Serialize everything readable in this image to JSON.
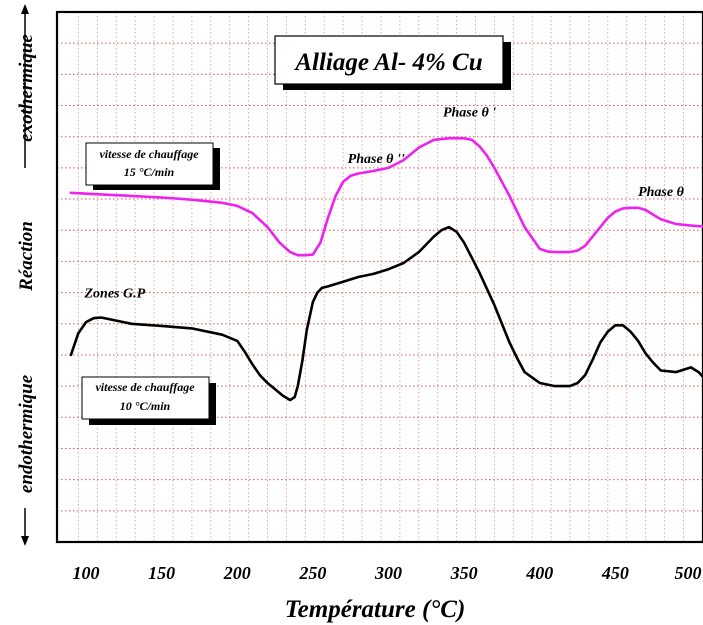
{
  "chart_data": {
    "type": "line",
    "title": "Alliage Al- 4% Cu",
    "xlabel": "Température (°C)",
    "ylabel": "Réaction",
    "ylabel_top": "exothermique",
    "ylabel_bottom": "endothermique",
    "xlim": [
      90,
      510
    ],
    "ylim": [
      0,
      17
    ],
    "x_ticks": [
      100,
      150,
      200,
      250,
      300,
      350,
      400,
      450,
      500
    ],
    "x_tick_labels": [
      "100",
      "150",
      "200",
      "250",
      "300",
      "350",
      "400",
      "450",
      "500"
    ],
    "grid": true,
    "series": [
      {
        "name": "vitesse de chauffage 15 °C/min",
        "name_line1": "vitesse de chauffage",
        "name_line2": "15 °C/min",
        "color": "#ee22ee",
        "x": [
          90,
          110,
          130,
          150,
          170,
          190,
          200,
          210,
          220,
          228,
          235,
          240,
          245,
          250,
          255,
          260,
          265,
          270,
          275,
          280,
          290,
          300,
          310,
          320,
          330,
          340,
          350,
          355,
          360,
          365,
          370,
          380,
          390,
          400,
          405,
          410,
          420,
          425,
          430,
          440,
          445,
          450,
          455,
          460,
          465,
          470,
          480,
          490,
          500,
          510
        ],
        "y": [
          11.2,
          11.15,
          11.1,
          11.05,
          10.98,
          10.88,
          10.78,
          10.55,
          10.1,
          9.6,
          9.3,
          9.2,
          9.2,
          9.22,
          9.6,
          10.4,
          11.1,
          11.55,
          11.75,
          11.82,
          11.9,
          12.0,
          12.25,
          12.65,
          12.9,
          12.95,
          12.95,
          12.9,
          12.7,
          12.4,
          12.0,
          11.1,
          10.1,
          9.4,
          9.32,
          9.3,
          9.3,
          9.35,
          9.5,
          10.1,
          10.4,
          10.6,
          10.7,
          10.72,
          10.72,
          10.65,
          10.35,
          10.2,
          10.15,
          10.12
        ]
      },
      {
        "name": "vitesse de chauffage 10 °C/min",
        "name_line1": "vitesse de chauffage",
        "name_line2": "10 °C/min",
        "color": "#000000",
        "x": [
          90,
          95,
          100,
          105,
          110,
          120,
          130,
          150,
          170,
          190,
          200,
          205,
          210,
          215,
          220,
          225,
          230,
          235,
          238,
          240,
          243,
          246,
          250,
          253,
          256,
          260,
          270,
          280,
          290,
          300,
          310,
          320,
          330,
          335,
          340,
          345,
          350,
          360,
          370,
          380,
          385,
          390,
          400,
          410,
          420,
          425,
          430,
          435,
          440,
          445,
          450,
          455,
          460,
          465,
          470,
          475,
          480,
          490,
          500,
          505,
          510
        ],
        "y": [
          6.0,
          6.7,
          7.05,
          7.18,
          7.2,
          7.1,
          7.0,
          6.93,
          6.85,
          6.65,
          6.45,
          6.1,
          5.7,
          5.35,
          5.1,
          4.9,
          4.7,
          4.55,
          4.65,
          5.0,
          5.8,
          6.8,
          7.7,
          8.0,
          8.15,
          8.2,
          8.35,
          8.5,
          8.6,
          8.75,
          8.95,
          9.3,
          9.8,
          10.0,
          10.1,
          9.95,
          9.6,
          8.65,
          7.6,
          6.4,
          5.9,
          5.45,
          5.1,
          5.0,
          5.0,
          5.1,
          5.35,
          5.85,
          6.4,
          6.75,
          6.95,
          6.95,
          6.75,
          6.45,
          6.05,
          5.75,
          5.5,
          5.45,
          5.6,
          5.45,
          5.3
        ]
      }
    ],
    "annotations": [
      {
        "text": "Zones G.P",
        "x": 99,
        "y": 7.85
      },
      {
        "text": "Phase θ ''",
        "x": 273,
        "y": 12.15
      },
      {
        "text": "Phase θ '",
        "x": 336,
        "y": 13.65
      },
      {
        "text": "Phase θ",
        "x": 465,
        "y": 11.1
      }
    ]
  }
}
